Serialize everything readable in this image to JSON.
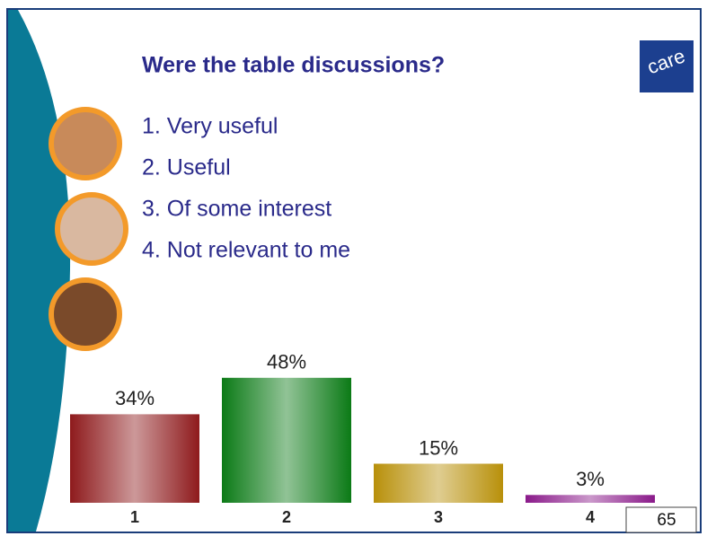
{
  "chart_data": {
    "type": "bar",
    "title": "Were the table discussions?",
    "categories": [
      "1",
      "2",
      "3",
      "4"
    ],
    "values": [
      34,
      48,
      15,
      3
    ],
    "value_labels": [
      "34%",
      "48%",
      "15%",
      "3%"
    ],
    "colors": [
      "#8e1a1c",
      "#0b7a16",
      "#b8900a",
      "#8a1a8a"
    ]
  },
  "slide": {
    "options": [
      "1. Very useful",
      "2. Useful",
      "3. Of some interest",
      "4. Not relevant to me"
    ],
    "logo": "care",
    "page_number": "65"
  }
}
